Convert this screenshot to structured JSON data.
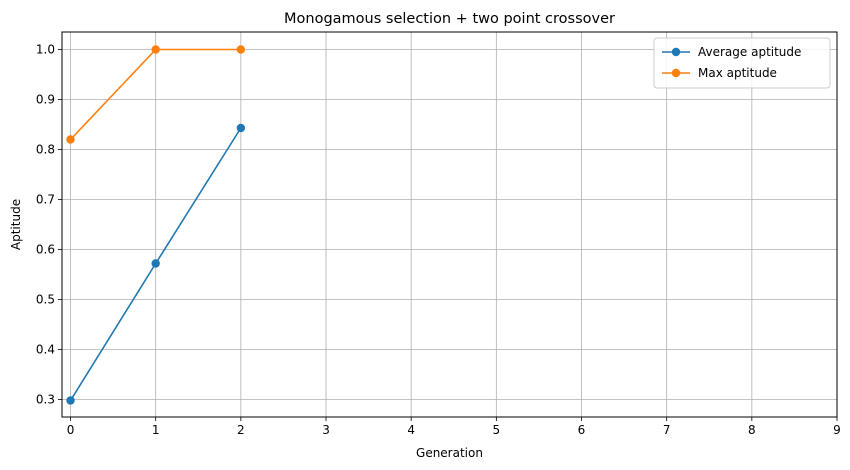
{
  "chart_data": {
    "type": "line",
    "title": "Monogamous selection + two point crossover",
    "xlabel": "Generation",
    "ylabel": "Aptitude",
    "xlim": [
      -0.1,
      9
    ],
    "ylim": [
      0.265,
      1.035
    ],
    "x_ticks": [
      0,
      1,
      2,
      3,
      4,
      5,
      6,
      7,
      8,
      9
    ],
    "y_ticks": [
      0.3,
      0.4,
      0.5,
      0.6,
      0.7,
      0.8,
      0.9,
      1.0
    ],
    "x_tick_labels": [
      "0",
      "1",
      "2",
      "3",
      "4",
      "5",
      "6",
      "7",
      "8",
      "9"
    ],
    "y_tick_labels": [
      "0.3",
      "0.4",
      "0.5",
      "0.6",
      "0.7",
      "0.8",
      "0.9",
      "1.0"
    ],
    "grid": true,
    "legend_position": "top-right",
    "series": [
      {
        "name": "Average aptitude",
        "color": "#1f77b4",
        "x": [
          0,
          1,
          2
        ],
        "values": [
          0.298,
          0.572,
          0.843
        ]
      },
      {
        "name": "Max aptitude",
        "color": "#ff7f0e",
        "x": [
          0,
          1,
          2
        ],
        "values": [
          0.82,
          1.0,
          1.0
        ]
      }
    ]
  }
}
